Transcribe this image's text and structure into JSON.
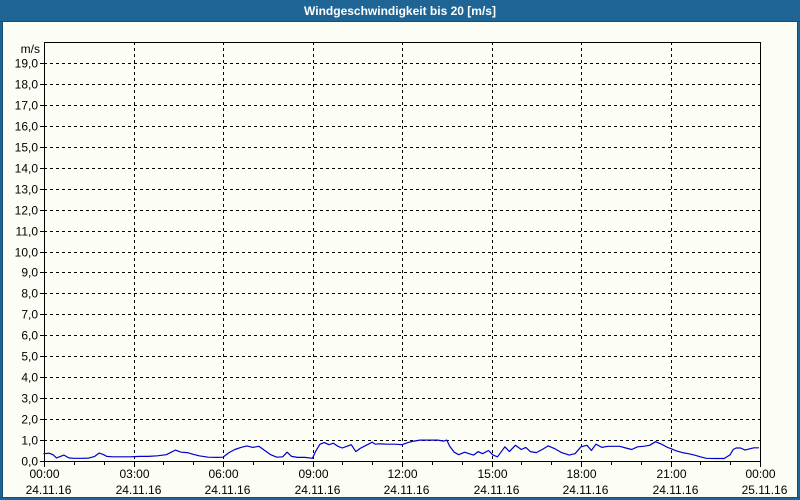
{
  "window": {
    "title": "Windgeschwindigkeit bis 20 [m/s]",
    "frame_color": "#1e6596",
    "background_color": "#fcfdf5"
  },
  "chart_data": {
    "type": "line",
    "title": "Windgeschwindigkeit bis 20 [m/s]",
    "grid": "dashed",
    "legend_position": "none",
    "line_color": "#0000cd",
    "axis_color": "#000000",
    "y_axis": {
      "unit_label": "m/s",
      "min": 0,
      "max": 20,
      "tick_step": 1.0,
      "tick_labels": [
        "0,0",
        "1,0",
        "2,0",
        "3,0",
        "4,0",
        "5,0",
        "6,0",
        "7,0",
        "8,0",
        "9,0",
        "10,0",
        "11,0",
        "12,0",
        "13,0",
        "14,0",
        "15,0",
        "16,0",
        "17,0",
        "18,0",
        "19,0"
      ]
    },
    "x_axis": {
      "start_hour": 0,
      "end_hour": 24,
      "major_tick_interval_hours": 3,
      "minor_tick_interval_hours": 1,
      "major_ticks": [
        {
          "time": "00:00",
          "date": "24.11.16"
        },
        {
          "time": "03:00",
          "date": "24.11.16"
        },
        {
          "time": "06:00",
          "date": "24.11.16"
        },
        {
          "time": "09:00",
          "date": "24.11.16"
        },
        {
          "time": "12:00",
          "date": "24.11.16"
        },
        {
          "time": "15:00",
          "date": "24.11.16"
        },
        {
          "time": "18:00",
          "date": "24.11.16"
        },
        {
          "time": "21:00",
          "date": "24.11.16"
        },
        {
          "time": "00:00",
          "date": "25.11.16"
        }
      ]
    },
    "series": [
      {
        "name": "Windgeschwindigkeit",
        "unit": "m/s",
        "points": [
          [
            0.0,
            0.35
          ],
          [
            0.17,
            0.37
          ],
          [
            0.3,
            0.3
          ],
          [
            0.42,
            0.15
          ],
          [
            0.55,
            0.22
          ],
          [
            0.67,
            0.28
          ],
          [
            0.83,
            0.15
          ],
          [
            1.0,
            0.13
          ],
          [
            1.25,
            0.13
          ],
          [
            1.5,
            0.14
          ],
          [
            1.7,
            0.22
          ],
          [
            1.85,
            0.38
          ],
          [
            2.0,
            0.3
          ],
          [
            2.1,
            0.22
          ],
          [
            2.3,
            0.2
          ],
          [
            2.6,
            0.2
          ],
          [
            2.9,
            0.2
          ],
          [
            3.2,
            0.22
          ],
          [
            3.5,
            0.22
          ],
          [
            3.8,
            0.25
          ],
          [
            4.1,
            0.3
          ],
          [
            4.4,
            0.52
          ],
          [
            4.6,
            0.42
          ],
          [
            4.8,
            0.4
          ],
          [
            5.0,
            0.32
          ],
          [
            5.2,
            0.25
          ],
          [
            5.5,
            0.18
          ],
          [
            5.8,
            0.17
          ],
          [
            6.0,
            0.18
          ],
          [
            6.2,
            0.4
          ],
          [
            6.4,
            0.55
          ],
          [
            6.6,
            0.65
          ],
          [
            6.8,
            0.72
          ],
          [
            7.0,
            0.65
          ],
          [
            7.2,
            0.7
          ],
          [
            7.4,
            0.5
          ],
          [
            7.6,
            0.3
          ],
          [
            7.8,
            0.18
          ],
          [
            8.0,
            0.2
          ],
          [
            8.15,
            0.42
          ],
          [
            8.3,
            0.22
          ],
          [
            8.5,
            0.17
          ],
          [
            8.75,
            0.17
          ],
          [
            9.0,
            0.13
          ],
          [
            9.1,
            0.45
          ],
          [
            9.25,
            0.8
          ],
          [
            9.4,
            0.88
          ],
          [
            9.55,
            0.78
          ],
          [
            9.7,
            0.85
          ],
          [
            9.85,
            0.7
          ],
          [
            10.0,
            0.62
          ],
          [
            10.15,
            0.7
          ],
          [
            10.3,
            0.78
          ],
          [
            10.45,
            0.45
          ],
          [
            10.6,
            0.6
          ],
          [
            10.8,
            0.75
          ],
          [
            11.0,
            0.9
          ],
          [
            11.1,
            0.8
          ],
          [
            11.25,
            0.82
          ],
          [
            11.5,
            0.8
          ],
          [
            11.75,
            0.8
          ],
          [
            12.0,
            0.78
          ],
          [
            12.2,
            0.88
          ],
          [
            12.4,
            0.95
          ],
          [
            12.6,
            1.0
          ],
          [
            12.9,
            1.0
          ],
          [
            13.2,
            1.0
          ],
          [
            13.4,
            0.95
          ],
          [
            13.5,
            1.0
          ],
          [
            13.6,
            0.7
          ],
          [
            13.75,
            0.42
          ],
          [
            13.9,
            0.3
          ],
          [
            14.1,
            0.42
          ],
          [
            14.25,
            0.35
          ],
          [
            14.4,
            0.28
          ],
          [
            14.55,
            0.45
          ],
          [
            14.7,
            0.35
          ],
          [
            14.9,
            0.5
          ],
          [
            15.05,
            0.28
          ],
          [
            15.2,
            0.2
          ],
          [
            15.45,
            0.68
          ],
          [
            15.6,
            0.45
          ],
          [
            15.8,
            0.75
          ],
          [
            16.0,
            0.55
          ],
          [
            16.15,
            0.65
          ],
          [
            16.3,
            0.45
          ],
          [
            16.5,
            0.4
          ],
          [
            16.7,
            0.55
          ],
          [
            16.9,
            0.72
          ],
          [
            17.1,
            0.6
          ],
          [
            17.35,
            0.4
          ],
          [
            17.6,
            0.28
          ],
          [
            17.8,
            0.35
          ],
          [
            18.0,
            0.68
          ],
          [
            18.2,
            0.75
          ],
          [
            18.35,
            0.5
          ],
          [
            18.5,
            0.8
          ],
          [
            18.7,
            0.65
          ],
          [
            18.9,
            0.7
          ],
          [
            19.1,
            0.7
          ],
          [
            19.3,
            0.7
          ],
          [
            19.5,
            0.62
          ],
          [
            19.7,
            0.55
          ],
          [
            19.9,
            0.68
          ],
          [
            20.1,
            0.7
          ],
          [
            20.3,
            0.75
          ],
          [
            20.5,
            0.92
          ],
          [
            20.7,
            0.8
          ],
          [
            20.9,
            0.65
          ],
          [
            21.0,
            0.6
          ],
          [
            21.2,
            0.48
          ],
          [
            21.4,
            0.4
          ],
          [
            21.6,
            0.35
          ],
          [
            21.8,
            0.28
          ],
          [
            22.0,
            0.2
          ],
          [
            22.2,
            0.13
          ],
          [
            22.5,
            0.12
          ],
          [
            22.8,
            0.12
          ],
          [
            23.0,
            0.3
          ],
          [
            23.1,
            0.55
          ],
          [
            23.2,
            0.62
          ],
          [
            23.35,
            0.62
          ],
          [
            23.5,
            0.52
          ],
          [
            23.65,
            0.58
          ],
          [
            23.8,
            0.63
          ],
          [
            23.95,
            0.63
          ]
        ]
      }
    ]
  }
}
